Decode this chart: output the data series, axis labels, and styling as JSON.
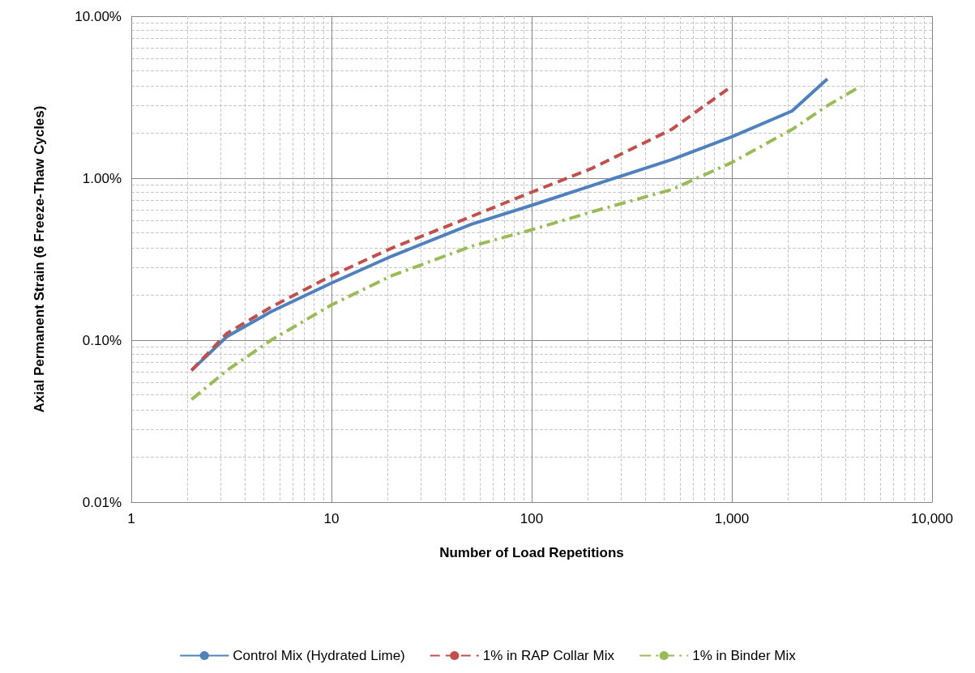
{
  "chart_data": {
    "type": "line",
    "xlabel": "Number of Load Repetitions",
    "ylabel": "Axial Permanent Strain (6 Freeze-Thaw Cycles)",
    "log": "xy",
    "grid": true,
    "legend": "bottom",
    "marker": "none",
    "xlim": [
      1,
      10000
    ],
    "xticks": [
      1,
      10,
      100,
      {
        "value": 1000,
        "label": "1,000"
      },
      {
        "value": 10000,
        "label": "10,000"
      }
    ],
    "ylim": [
      0.01,
      10
    ],
    "yticks": [
      {
        "value": 0.01,
        "label": "0.01%"
      },
      {
        "value": 0.1,
        "label": "0.10%"
      },
      {
        "value": 1,
        "label": "1.00%"
      },
      {
        "value": 10,
        "label": "10.00%"
      }
    ],
    "series": [
      {
        "name": "Control Mix (Hydrated Lime)",
        "color": "#4f81bd",
        "line_style": "solid",
        "x": [
          2,
          3,
          5,
          10,
          20,
          50,
          100,
          200,
          500,
          1000,
          2000,
          3000
        ],
        "values": [
          0.065,
          0.105,
          0.15,
          0.225,
          0.33,
          0.52,
          0.68,
          0.9,
          1.3,
          1.8,
          2.6,
          4.1
        ]
      },
      {
        "name": "1% in RAP Collar Mix",
        "color": "#c0504d",
        "line_style": "dashed",
        "x": [
          2,
          3,
          5,
          10,
          20,
          50,
          100,
          200,
          500,
          1000
        ],
        "values": [
          0.065,
          0.11,
          0.16,
          0.25,
          0.37,
          0.58,
          0.82,
          1.15,
          2.0,
          3.7
        ]
      },
      {
        "name": "1% in Binder Mix",
        "color": "#9bbb59",
        "line_style": "dashdot",
        "x": [
          2,
          3,
          5,
          10,
          20,
          50,
          100,
          200,
          500,
          1000,
          2000,
          3000,
          4400
        ],
        "values": [
          0.043,
          0.065,
          0.1,
          0.165,
          0.25,
          0.38,
          0.48,
          0.62,
          0.85,
          1.25,
          2.0,
          2.8,
          3.7
        ]
      }
    ]
  }
}
